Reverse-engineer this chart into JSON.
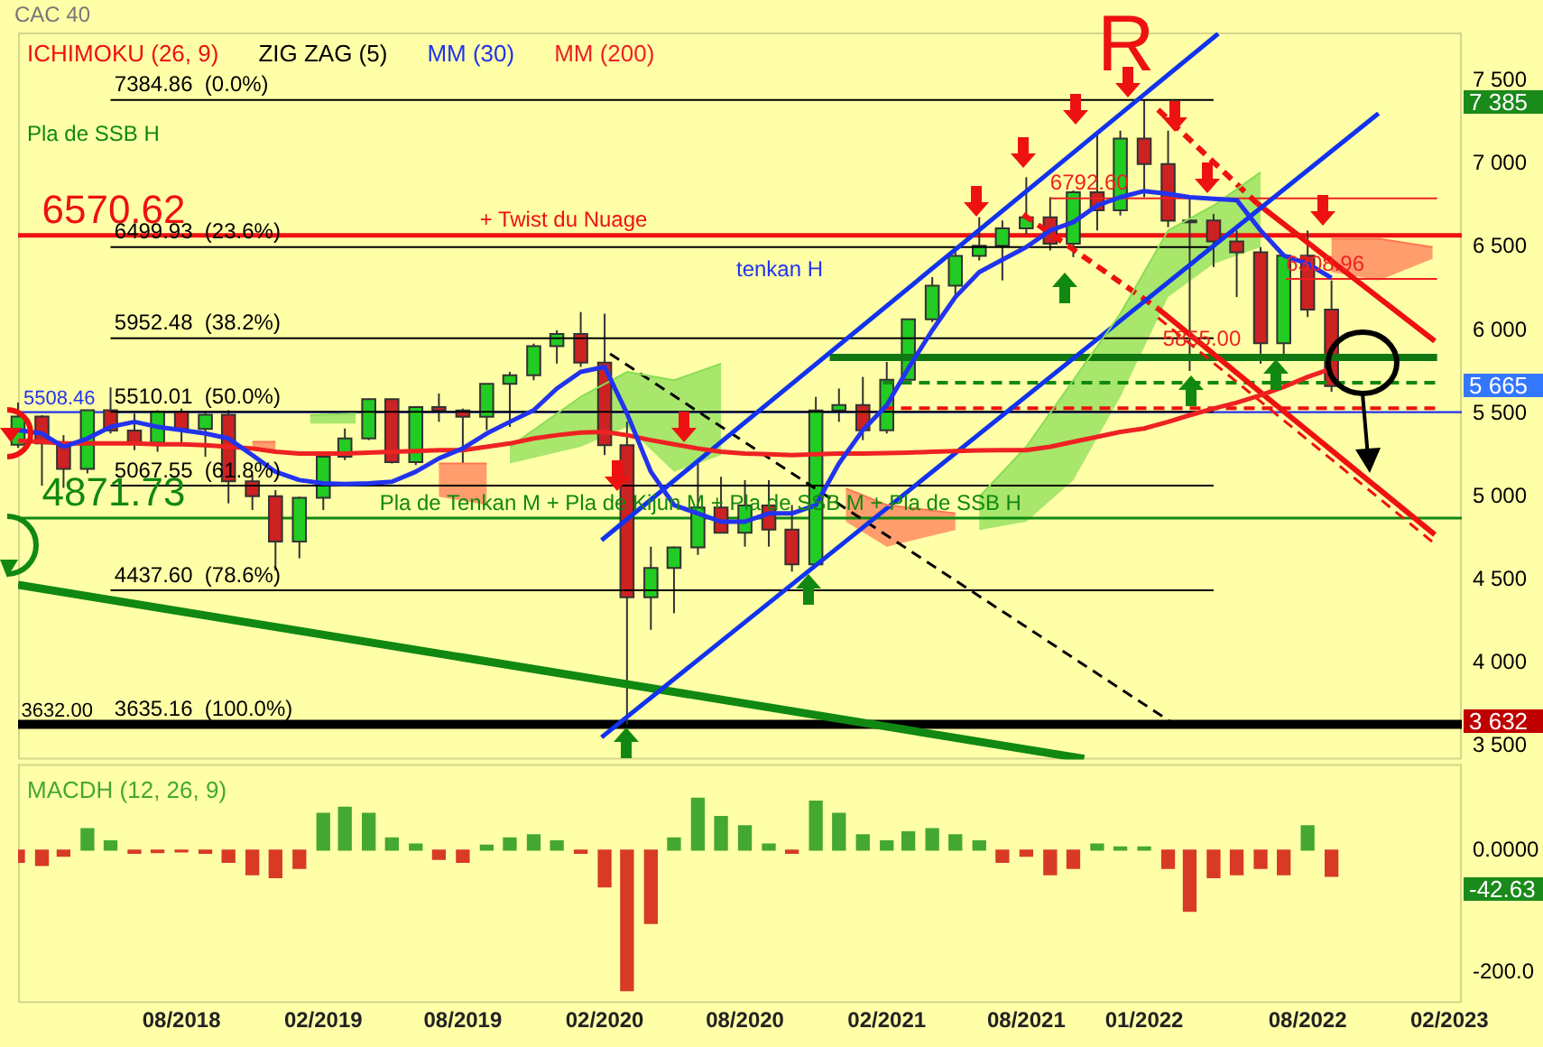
{
  "chart_data": [
    {
      "type": "candlestick",
      "title": "CAC 40",
      "legend": "top left",
      "tick_labels": "y",
      "x": [
        "2018-01",
        "2018-02",
        "2018-03",
        "2018-04",
        "2018-05",
        "2018-06",
        "2018-07",
        "2018-08",
        "2018-09",
        "2018-10",
        "2018-11",
        "2018-12",
        "2019-01",
        "2019-02",
        "2019-03",
        "2019-04",
        "2019-05",
        "2019-06",
        "2019-07",
        "2019-08",
        "2019-09",
        "2019-10",
        "2019-11",
        "2019-12",
        "2020-01",
        "2020-02",
        "2020-03",
        "2020-04",
        "2020-05",
        "2020-06",
        "2020-07",
        "2020-08",
        "2020-09",
        "2020-10",
        "2020-11",
        "2020-12",
        "2021-01",
        "2021-02",
        "2021-03",
        "2021-04",
        "2021-05",
        "2021-06",
        "2021-07",
        "2021-08",
        "2021-09",
        "2021-10",
        "2021-11",
        "2021-12",
        "2022-01",
        "2022-02",
        "2022-03",
        "2022-04",
        "2022-05",
        "2022-06",
        "2022-07",
        "2022-08",
        "2022-09"
      ],
      "ohlc": [
        [
          5313,
          5566,
          5295,
          5482
        ],
        [
          5482,
          5490,
          5066,
          5320
        ],
        [
          5320,
          5370,
          5053,
          5167
        ],
        [
          5167,
          5520,
          5140,
          5520
        ],
        [
          5520,
          5657,
          5380,
          5398
        ],
        [
          5398,
          5500,
          5280,
          5324
        ],
        [
          5324,
          5520,
          5270,
          5511
        ],
        [
          5511,
          5530,
          5315,
          5407
        ],
        [
          5407,
          5510,
          5240,
          5493
        ],
        [
          5493,
          5520,
          4960,
          5093
        ],
        [
          5093,
          5130,
          4920,
          5003
        ],
        [
          5003,
          5040,
          4556,
          4731
        ],
        [
          4731,
          5000,
          4630,
          4993
        ],
        [
          4993,
          5250,
          4920,
          5241
        ],
        [
          5241,
          5410,
          5220,
          5350
        ],
        [
          5350,
          5590,
          5340,
          5586
        ],
        [
          5586,
          5590,
          5200,
          5208
        ],
        [
          5208,
          5540,
          5190,
          5539
        ],
        [
          5539,
          5620,
          5450,
          5519
        ],
        [
          5519,
          5530,
          5200,
          5481
        ],
        [
          5481,
          5680,
          5400,
          5678
        ],
        [
          5678,
          5750,
          5420,
          5730
        ],
        [
          5730,
          5920,
          5700,
          5905
        ],
        [
          5905,
          6000,
          5800,
          5978
        ],
        [
          5978,
          6110,
          5780,
          5806
        ],
        [
          5806,
          6100,
          5250,
          5309
        ],
        [
          5309,
          5450,
          3632,
          4396
        ],
        [
          4396,
          4700,
          4200,
          4572
        ],
        [
          4572,
          4700,
          4300,
          4695
        ],
        [
          4695,
          5200,
          4650,
          4936
        ],
        [
          4936,
          5120,
          4780,
          4784
        ],
        [
          4784,
          5100,
          4700,
          4947
        ],
        [
          4947,
          5100,
          4700,
          4803
        ],
        [
          4803,
          4950,
          4550,
          4594
        ],
        [
          4594,
          5600,
          4590,
          5518
        ],
        [
          5518,
          5650,
          5450,
          5551
        ],
        [
          5551,
          5720,
          5340,
          5399
        ],
        [
          5399,
          5810,
          5380,
          5703
        ],
        [
          5703,
          6070,
          5700,
          6067
        ],
        [
          6067,
          6320,
          6050,
          6269
        ],
        [
          6269,
          6480,
          6190,
          6447
        ],
        [
          6447,
          6680,
          6420,
          6508
        ],
        [
          6508,
          6660,
          6300,
          6613
        ],
        [
          6613,
          6920,
          6580,
          6680
        ],
        [
          6680,
          6800,
          6480,
          6520
        ],
        [
          6520,
          6840,
          6440,
          6830
        ],
        [
          6830,
          7180,
          6600,
          6721
        ],
        [
          6721,
          7200,
          6690,
          7153
        ],
        [
          7153,
          7385,
          6800,
          6999
        ],
        [
          6999,
          7200,
          6620,
          6659
        ],
        [
          6659,
          6800,
          5756,
          6660
        ],
        [
          6660,
          6700,
          6380,
          6534
        ],
        [
          6534,
          6600,
          6200,
          6469
        ],
        [
          6469,
          6500,
          5800,
          5923
        ],
        [
          5923,
          6450,
          5850,
          6449
        ],
        [
          6449,
          6600,
          6080,
          6125
        ],
        [
          6125,
          6300,
          5630,
          5665
        ]
      ],
      "series": [
        {
          "type": "line",
          "name": "MM (30)",
          "color": "#2233ee",
          "values": [
            5400,
            5380,
            5300,
            5350,
            5420,
            5450,
            5420,
            5400,
            5380,
            5350,
            5250,
            5150,
            5100,
            5080,
            5076,
            5080,
            5090,
            5150,
            5230,
            5290,
            5380,
            5450,
            5520,
            5650,
            5750,
            5780,
            5500,
            5150,
            4950,
            4900,
            4850,
            4850,
            4900,
            4900,
            4950,
            5200,
            5400,
            5550,
            5772,
            6000,
            6200,
            6350,
            6424,
            6500,
            6600,
            6650,
            6750,
            6800,
            6837,
            6820,
            6800,
            6790,
            6783,
            6600,
            6450,
            6400,
            6315
          ]
        },
        {
          "type": "line",
          "name": "MM (200)",
          "color": "#ee2222",
          "values": [
            5337,
            5330,
            5320,
            5320,
            5320,
            5320,
            5315,
            5315,
            5310,
            5300,
            5290,
            5270,
            5260,
            5260,
            5260,
            5265,
            5270,
            5275,
            5280,
            5280,
            5300,
            5320,
            5350,
            5370,
            5385,
            5390,
            5370,
            5340,
            5315,
            5290,
            5270,
            5260,
            5255,
            5250,
            5255,
            5260,
            5260,
            5262,
            5265,
            5270,
            5275,
            5278,
            5280,
            5280,
            5300,
            5330,
            5360,
            5390,
            5410,
            5450,
            5490,
            5530,
            5565,
            5610,
            5660,
            5720,
            5770
          ]
        },
        {
          "type": "line",
          "color": "#88dd55",
          "x": [
            "2019-01-15",
            "2019-03-15",
            "2019-06",
            "2019-10",
            "2020-01",
            "2020-03",
            "2020-05",
            "2020-07",
            "2020-08",
            "2021-06",
            "2021-08",
            "2021-10",
            "2021-12",
            "2022-02",
            "2022-04",
            "2022-06"
          ],
          "values": [
            5490,
            5500,
            null,
            5300,
            5600,
            5750,
            5700,
            5800,
            null,
            5000,
            5300,
            5700,
            6100,
            6600,
            6750,
            6950
          ],
          "upper": [
            5490,
            5500,
            null,
            5300,
            5600,
            5750,
            5700,
            5800,
            null,
            5000,
            5300,
            5700,
            6100,
            6600,
            6750,
            6950
          ],
          "lower": [
            5440,
            5440,
            null,
            5200,
            5300,
            5420,
            5150,
            5250,
            null,
            4800,
            4850,
            5100,
            5600,
            6200,
            6400,
            6500
          ]
        },
        {
          "type": "line",
          "color": "#ff7755",
          "x": [
            "2018-11",
            "2018-12",
            "2019-01",
            "2019-07",
            "2019-09",
            "2019-10",
            "2020-12-10",
            "2021-02",
            "2021-05",
            "2021-06",
            "2022-09",
            "2022-11",
            "2023-01-10"
          ],
          "values": [
            5330,
            5330,
            null,
            5200,
            5200,
            null,
            5050,
            4950,
            4900,
            null,
            6550,
            6550,
            6500
          ],
          "upper": [
            5330,
            5330,
            null,
            5200,
            5200,
            null,
            5050,
            4950,
            4900,
            null,
            6550,
            6550,
            6500
          ],
          "lower": [
            5280,
            5260,
            null,
            5000,
            4950,
            null,
            4850,
            4700,
            4800,
            null,
            6350,
            6300,
            6430
          ]
        },
        {
          "type": "line",
          "color": "#1133ee",
          "x": [
            "2020-01-28",
            "2022-04-07"
          ],
          "values": [
            4739,
            7783
          ]
        },
        {
          "type": "line",
          "color": "#1133ee",
          "x": [
            "2020-01-28",
            "2022-11-01"
          ],
          "values": [
            3554,
            7304
          ]
        },
        {
          "type": "line",
          "color": "#ee1111",
          "x": [
            "2022-05-28",
            "2023-01-13"
          ],
          "values": [
            6761,
            5935
          ]
        },
        {
          "type": "line",
          "color": "#ee1111",
          "x": [
            "2022-01-19",
            "2023-01-13"
          ],
          "values": [
            6130,
            4772
          ]
        },
        {
          "type": "line",
          "color": "#ee1111",
          "line_style": "dashed",
          "x": [
            "2022-01-19",
            "2022-05-28"
          ],
          "values": [
            7326,
            6761
          ]
        },
        {
          "type": "line",
          "color": "#ee1111",
          "line_style": "dashed",
          "x": [
            "2021-07-28",
            "2022-01-19"
          ],
          "values": [
            6696,
            6130
          ]
        },
        {
          "type": "line",
          "color": "#ee1111",
          "line_style": "dashed",
          "x": [
            "2022-01-19",
            "2023-01-13"
          ],
          "values": [
            6076,
            4717
          ]
        },
        {
          "type": "line",
          "color": "#118811",
          "x": [
            "2018-01-01",
            "2021-10-15"
          ],
          "values": [
            4470,
            3425
          ]
        },
        {
          "type": "line",
          "color": "#000000",
          "line_style": "dashed",
          "x": [
            "2020-02-08",
            "2022-02-10"
          ],
          "values": [
            5859,
            3630
          ]
        },
        {
          "type": "line",
          "color": "#117711",
          "x": [
            "2020-11-19",
            "2023-01-16"
          ],
          "values": [
            5837,
            5837
          ]
        },
        {
          "type": "line",
          "color": "#ee1111",
          "line_style": "dashed",
          "x": [
            "2021-01-27",
            "2023-01-16"
          ],
          "values": [
            5532,
            5532
          ]
        },
        {
          "type": "line",
          "color": "#118811",
          "line_style": "dashed",
          "x": [
            "2021-01-27",
            "2023-01-16"
          ],
          "values": [
            5685,
            5685
          ]
        },
        {
          "type": "line",
          "color": "#000000",
          "x": [
            "2018-05-01",
            "2022-04-01"
          ],
          "values": [
            7384.86,
            7384.86
          ]
        },
        {
          "type": "line",
          "color": "#000000",
          "x": [
            "2018-05-01",
            "2022-04-01"
          ],
          "values": [
            6499.93,
            6499.93
          ]
        },
        {
          "type": "line",
          "color": "#000000",
          "x": [
            "2018-05-01",
            "2022-04-01"
          ],
          "values": [
            5952.48,
            5952.48
          ]
        },
        {
          "type": "line",
          "color": "#000000",
          "x": [
            "2018-05-01",
            "2022-04-01"
          ],
          "values": [
            5510.01,
            5510.01
          ]
        },
        {
          "type": "line",
          "color": "#000000",
          "x": [
            "2018-05-01",
            "2022-04-01"
          ],
          "values": [
            5067.55,
            5067.55
          ]
        },
        {
          "type": "line",
          "color": "#000000",
          "x": [
            "2018-05-01",
            "2022-04-01"
          ],
          "values": [
            4437.6,
            4437.6
          ]
        },
        {
          "type": "line",
          "color": "#ee2222",
          "x": [
            "2021-09-01",
            "2023-01-16"
          ],
          "values": [
            6792.6,
            6792.6
          ]
        },
        {
          "type": "line",
          "color": "#ee2222",
          "x": [
            "2022-07-04",
            "2023-01-16"
          ],
          "values": [
            6308.96,
            6308.96
          ]
        }
      ],
      "ref_lines": [
        {
          "axis": "y",
          "value": 6570.62,
          "color": "#ee1111"
        },
        {
          "axis": "y",
          "value": 4871.73,
          "color": "#118811"
        },
        {
          "axis": "y",
          "value": 5508.46,
          "color": "#2233ee"
        },
        {
          "axis": "y",
          "value": 3632,
          "color": "#000000"
        }
      ],
      "xlim": [
        "2018-01-01",
        "2023-02-17"
      ],
      "xticks": [
        {
          "value": "2018-08",
          "label": null
        },
        {
          "value": "2019-02",
          "label": null
        },
        {
          "value": "2019-08",
          "label": null
        },
        {
          "value": "2020-02",
          "label": null
        },
        {
          "value": "2020-08",
          "label": null
        },
        {
          "value": "2021-02",
          "label": null
        },
        {
          "value": "2021-08",
          "label": null
        },
        {
          "value": "2022-01",
          "label": null
        },
        {
          "value": "2022-08",
          "label": null
        },
        {
          "value": "2023-02",
          "label": null
        }
      ],
      "ylim": [
        3420,
        7790
      ],
      "yticks": [
        {
          "value": 3500,
          "label": "3 500"
        },
        {
          "value": 4000,
          "label": "4 000"
        },
        {
          "value": 4500,
          "label": "4 500"
        },
        {
          "value": 5000,
          "label": "5 000"
        },
        {
          "value": 5500,
          "label": "5 500"
        },
        {
          "value": 6000,
          "label": "6 000"
        },
        {
          "value": 6500,
          "label": "6 500"
        },
        {
          "value": 7000,
          "label": "7 000"
        },
        {
          "value": 7500,
          "label": "7 500"
        }
      ],
      "annotations": [
        "ICHIMOKU (26, 9)",
        "ZIG ZAG (5)",
        "7 385",
        "5 665",
        "3 632",
        "Pla de SSB H",
        "tenkan H",
        {
          "text": "6570.62",
          "x": "2018-02-01",
          "y": 6570.62
        },
        {
          "text": "4871.73",
          "x": "2018-02-01",
          "y": 4871.73
        },
        {
          "text": "5508.46",
          "x": "2018-01-08",
          "y": 5508.46
        },
        {
          "text": "3632.00",
          "x": "2018-01-05",
          "y": 3632
        },
        {
          "text": "7384.86  (0.0%)",
          "x": "2018-05-06",
          "y": 7384.86
        },
        {
          "text": "6499.93  (23.6%)",
          "x": "2018-05-06",
          "y": 6499.93
        },
        {
          "text": "5952.48  (38.2%)",
          "x": "2018-05-06",
          "y": 5952.48
        },
        {
          "text": "5510.01  (50.0%)",
          "x": "2018-05-06",
          "y": 5510.01
        },
        {
          "text": "5067.55  (61.8%)",
          "x": "2018-05-06",
          "y": 5067.55
        },
        {
          "text": "4437.60  (78.6%)",
          "x": "2018-05-06",
          "y": 4437.6
        },
        {
          "text": "3635.16  (100.0%)",
          "x": "2018-05-06",
          "y": 3635.16
        },
        {
          "text": "6792.60",
          "x": "2021-09-01",
          "y": 6792.6
        },
        {
          "text": "6308.96",
          "x": "2022-07-04",
          "y": 6308.96
        },
        {
          "text": "5855.00",
          "x": "2022-01-25",
          "y": 5855
        },
        {
          "text": "+ Twist du Nuage",
          "x": "2019-08-23",
          "y": 6570.62
        },
        {
          "text": "Pla de Tenkan M + Pla de Kijun M + Pla de SSB M + Pla de SSB H",
          "x": "2019-04-15",
          "y": 4871.73
        },
        {
          "text": "R",
          "x": "2021-11-01",
          "y": 7435
        }
      ]
    },
    {
      "type": "bar",
      "title": "MACDH (12, 26, 9)",
      "x": [
        "2018-01",
        "2018-02",
        "2018-03",
        "2018-04",
        "2018-05",
        "2018-06",
        "2018-07",
        "2018-08",
        "2018-09",
        "2018-10",
        "2018-11",
        "2018-12",
        "2019-01",
        "2019-02",
        "2019-03",
        "2019-04",
        "2019-05",
        "2019-06",
        "2019-07",
        "2019-08",
        "2019-09",
        "2019-10",
        "2019-11",
        "2019-12",
        "2020-01",
        "2020-02",
        "2020-03",
        "2020-04",
        "2020-05",
        "2020-06",
        "2020-07",
        "2020-08",
        "2020-09",
        "2020-10",
        "2020-11",
        "2020-12",
        "2021-01",
        "2021-02",
        "2021-03",
        "2021-04",
        "2021-05",
        "2021-06",
        "2021-07",
        "2021-08",
        "2021-09",
        "2021-10",
        "2021-11",
        "2021-12",
        "2022-01",
        "2022-02",
        "2022-03",
        "2022-04",
        "2022-05",
        "2022-06",
        "2022-07",
        "2022-08",
        "2022-09"
      ],
      "values": [
        -20,
        -25,
        -10,
        35,
        15,
        -5,
        -4,
        -3,
        -5,
        -20,
        -40,
        -45,
        -30,
        60,
        70,
        60,
        20,
        10,
        -15,
        -20,
        8,
        20,
        25,
        15,
        -5,
        -60,
        -230,
        -120,
        20,
        85,
        55,
        40,
        10,
        -5,
        80,
        60,
        25,
        15,
        30,
        35,
        25,
        15,
        -20,
        -10,
        -40,
        -30,
        10,
        5,
        5,
        -30,
        -100,
        -45,
        -40,
        -30,
        -40,
        40,
        -42.63
      ],
      "colors": [
        "#d83a26",
        "#d83a26",
        "#d83a26",
        "#44a832",
        "#44a832",
        "#d83a26",
        "#d83a26",
        "#d83a26",
        "#d83a26",
        "#d83a26",
        "#d83a26",
        "#d83a26",
        "#d83a26",
        "#44a832",
        "#44a832",
        "#44a832",
        "#44a832",
        "#44a832",
        "#d83a26",
        "#d83a26",
        "#44a832",
        "#44a832",
        "#44a832",
        "#44a832",
        "#d83a26",
        "#d83a26",
        "#d83a26",
        "#d83a26",
        "#44a832",
        "#44a832",
        "#44a832",
        "#44a832",
        "#44a832",
        "#d83a26",
        "#44a832",
        "#44a832",
        "#44a832",
        "#44a832",
        "#44a832",
        "#44a832",
        "#44a832",
        "#44a832",
        "#d83a26",
        "#d83a26",
        "#d83a26",
        "#d83a26",
        "#44a832",
        "#44a832",
        "#44a832",
        "#d83a26",
        "#d83a26",
        "#d83a26",
        "#d83a26",
        "#d83a26",
        "#d83a26",
        "#44a832",
        "#d83a26"
      ],
      "xlim": [
        "2018-01-01",
        "2023-02-17"
      ],
      "ylim": [
        -250,
        141
      ],
      "yticks": [
        {
          "value": -200,
          "label": "-200.0"
        },
        {
          "value": 0,
          "label": "0.0000"
        }
      ],
      "xticks": [
        {
          "value": "2018-08",
          "label": "08/2018"
        },
        {
          "value": "2019-02",
          "label": "02/2019"
        },
        {
          "value": "2019-08",
          "label": "08/2019"
        },
        {
          "value": "2020-02",
          "label": "02/2020"
        },
        {
          "value": "2020-08",
          "label": "08/2020"
        },
        {
          "value": "2021-02",
          "label": "02/2021"
        },
        {
          "value": "2021-08",
          "label": "08/2021"
        },
        {
          "value": "2022-01",
          "label": "01/2022"
        },
        {
          "value": "2022-08",
          "label": "08/2022"
        },
        {
          "value": "2023-02",
          "label": "02/2023"
        }
      ],
      "annotations": [
        "-42.63"
      ]
    }
  ]
}
